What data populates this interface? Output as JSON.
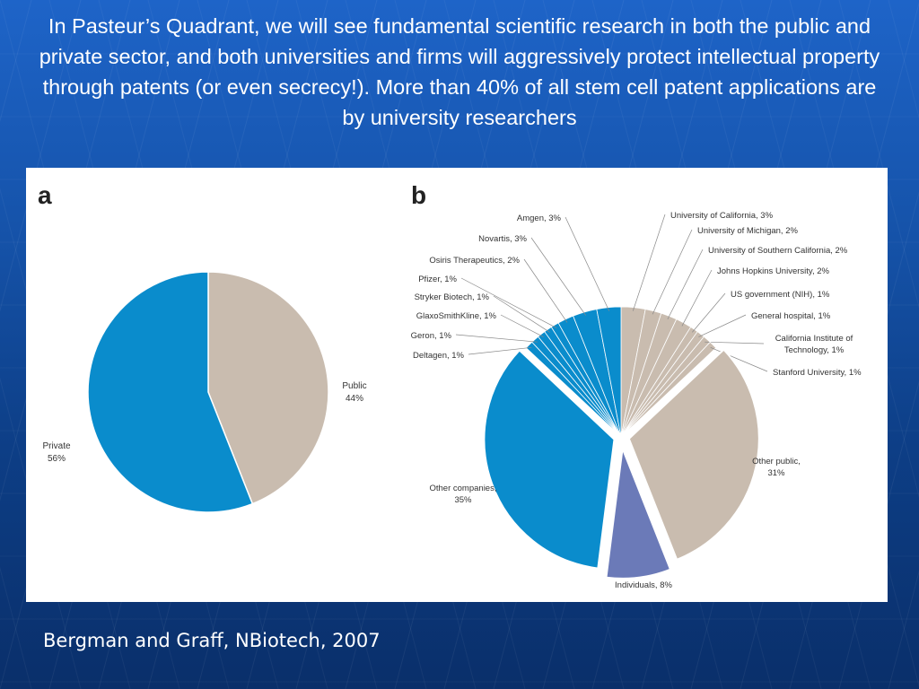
{
  "slide": {
    "title": "In Pasteur’s Quadrant, we will see fundamental scientific research in both the public and private sector, and both universities and firms will aggressively protect intellectual property through patents (or even secrecy!).  More than 40% of all stem cell patent applications are by university researchers",
    "citation": "Bergman and Graff, NBiotech, 2007"
  },
  "colors": {
    "public": "#c9bcaf",
    "private": "#0a8ccc",
    "individuals": "#6b7ab8",
    "background_top": "#1e64c8",
    "background_bottom": "#0a2f6a"
  },
  "chart_data": [
    {
      "panel_label": "a",
      "type": "pie",
      "slices": [
        {
          "label": "Public",
          "value": 44,
          "value_label": "44%",
          "group": "public"
        },
        {
          "label": "Private",
          "value": 56,
          "value_label": "56%",
          "group": "private"
        }
      ]
    },
    {
      "panel_label": "b",
      "type": "pie",
      "slices": [
        {
          "label": "University of California, 3%",
          "value": 3,
          "group": "public"
        },
        {
          "label": "University of Michigan, 2%",
          "value": 2,
          "group": "public"
        },
        {
          "label": "University of Southern California, 2%",
          "value": 2,
          "group": "public"
        },
        {
          "label": "Johns Hopkins University, 2%",
          "value": 2,
          "group": "public"
        },
        {
          "label": "US government (NIH), 1%",
          "value": 1,
          "group": "public"
        },
        {
          "label": "General hospital, 1%",
          "value": 1,
          "group": "public"
        },
        {
          "label": "California Institute of Technology, 1%",
          "value": 1,
          "group": "public"
        },
        {
          "label": "Stanford University, 1%",
          "value": 1,
          "group": "public"
        },
        {
          "label": "Other public, 31%",
          "value": 31,
          "group": "public"
        },
        {
          "label": "Individuals, 8%",
          "value": 8,
          "group": "individuals"
        },
        {
          "label": "Other companies, 35%",
          "value": 35,
          "group": "private"
        },
        {
          "label": "Deltagen, 1%",
          "value": 1,
          "group": "private"
        },
        {
          "label": "Geron, 1%",
          "value": 1,
          "group": "private"
        },
        {
          "label": "GlaxoSmithKline, 1%",
          "value": 1,
          "group": "private"
        },
        {
          "label": "Stryker Biotech, 1%",
          "value": 1,
          "group": "private"
        },
        {
          "label": "Pfizer, 1%",
          "value": 1,
          "group": "private"
        },
        {
          "label": "Osiris Therapeutics, 2%",
          "value": 2,
          "group": "private"
        },
        {
          "label": "Novartis, 3%",
          "value": 3,
          "group": "private"
        },
        {
          "label": "Amgen, 3%",
          "value": 3,
          "group": "private"
        }
      ]
    }
  ]
}
